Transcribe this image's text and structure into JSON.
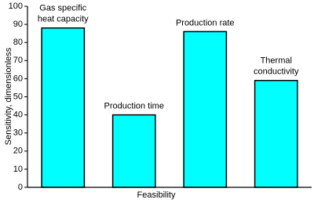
{
  "chart_data": {
    "type": "bar",
    "x_label": "Feasibility",
    "y_label": "Sensitivity, dimensionless",
    "categories": [
      "Gas specific\nheat capacity",
      "Production time",
      "Production rate",
      "Thermal\nconductivity"
    ],
    "values": [
      88,
      40,
      86,
      59
    ],
    "color": "#00ffff",
    "ylim": [
      0,
      100
    ],
    "yticks": [
      0,
      10,
      20,
      30,
      40,
      50,
      60,
      70,
      80,
      90,
      100
    ]
  }
}
